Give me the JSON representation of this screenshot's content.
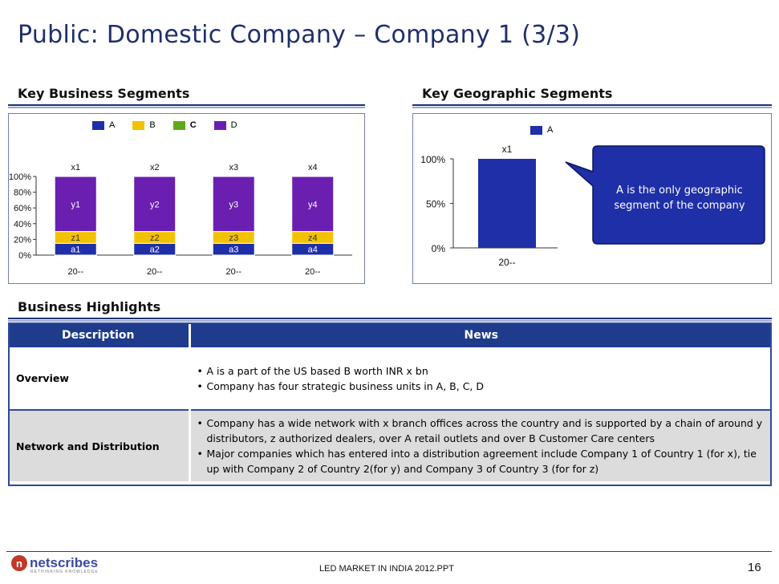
{
  "title": "Public: Domestic Company – Company 1 (3/3)",
  "sections": {
    "business": "Key Business Segments",
    "geographic": "Key Geographic Segments",
    "highlights": "Business Highlights"
  },
  "colors": {
    "A": "#1f2fa8",
    "B": "#f2c200",
    "C": "#5ea81a",
    "D": "#6a1fb0",
    "header": "#1f3b8c"
  },
  "chart_data": [
    {
      "type": "bar",
      "stacked": true,
      "legend": [
        "A",
        "B",
        "C",
        "D"
      ],
      "categories": [
        "20--",
        "20--",
        "20--",
        "20--"
      ],
      "totals": [
        "x1",
        "x2",
        "x3",
        "x4"
      ],
      "series": [
        {
          "name": "A",
          "values": [
            15,
            15,
            15,
            15
          ],
          "labels": [
            "a1",
            "a2",
            "a3",
            "a4"
          ]
        },
        {
          "name": "B",
          "values": [
            15,
            15,
            15,
            15
          ],
          "labels": [
            "z1",
            "z2",
            "z3",
            "z4"
          ]
        },
        {
          "name": "D",
          "values": [
            70,
            70,
            70,
            70
          ],
          "labels": [
            "y1",
            "y2",
            "y3",
            "y4"
          ]
        }
      ],
      "yticks": [
        "0%",
        "20%",
        "40%",
        "60%",
        "80%",
        "100%"
      ],
      "ylim": [
        0,
        100
      ]
    },
    {
      "type": "bar",
      "legend": [
        "A"
      ],
      "categories": [
        "20--"
      ],
      "totals": [
        "x1"
      ],
      "series": [
        {
          "name": "A",
          "values": [
            100
          ]
        }
      ],
      "yticks": [
        "0%",
        "50%",
        "100%"
      ],
      "ylim": [
        0,
        100
      ]
    }
  ],
  "callout": "A is the only geographic segment of the company",
  "table": {
    "headers": [
      "Description",
      "News"
    ],
    "rows": [
      {
        "label": "Overview",
        "bullets": [
          "A is a part of the US based B worth INR x bn",
          "Company has four strategic business units in A, B, C, D"
        ]
      },
      {
        "label": "Network and Distribution",
        "bullets": [
          "Company has a wide network with x branch offices across the country and is  supported by a chain of around y distributors, z authorized dealers, over A retail outlets and over B Customer Care centers",
          "Major companies which has entered into a distribution agreement  include Company 1 of Country 1 (for x), tie up with Company 2 of Country 2(for y) and Company 3 of Country 3 (for for z)"
        ]
      }
    ]
  },
  "footer": {
    "logo": "netscribes",
    "tagline": "RETHINKING KNOWLEDGE",
    "text": "LED MARKET IN INDIA 2012.PPT",
    "page": "16"
  }
}
